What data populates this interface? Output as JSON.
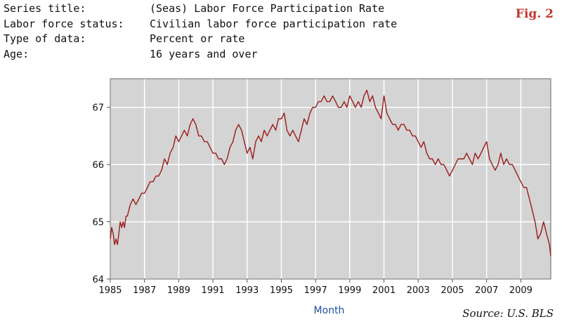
{
  "metadata": [
    {
      "label": "Series title:",
      "value": "(Seas) Labor Force Participation Rate"
    },
    {
      "label": "Labor force status:",
      "value": "Civilian labor force participation rate"
    },
    {
      "label": "Type of data:",
      "value": "Percent or rate"
    },
    {
      "label": "Age:",
      "value": "16 years and over"
    }
  ],
  "figure_label": "Fig. 2",
  "source": "Source: U.S. BLS",
  "colors": {
    "line": "#9b1b1b",
    "plot_bg": "#d4d4d4",
    "grid": "#ffffff",
    "fig_label": "#c0392b",
    "xlabel": "#1f4e9e"
  },
  "chart_data": {
    "type": "line",
    "title": "",
    "xlabel": "Month",
    "ylabel": "",
    "xlim": [
      1985,
      2010.75
    ],
    "ylim": [
      64,
      67.5
    ],
    "x_ticks": [
      1985,
      1987,
      1989,
      1991,
      1993,
      1995,
      1997,
      1999,
      2001,
      2003,
      2005,
      2007,
      2009
    ],
    "y_ticks": [
      64,
      65,
      66,
      67
    ],
    "grid": true,
    "legend": "none",
    "series": [
      {
        "name": "",
        "x": [
          1985.0,
          1985.08,
          1985.17,
          1985.25,
          1985.33,
          1985.42,
          1985.5,
          1985.58,
          1985.67,
          1985.75,
          1985.83,
          1985.92,
          1986.0,
          1986.17,
          1986.33,
          1986.5,
          1986.67,
          1986.83,
          1987.0,
          1987.17,
          1987.33,
          1987.5,
          1987.67,
          1987.83,
          1988.0,
          1988.17,
          1988.33,
          1988.5,
          1988.67,
          1988.83,
          1989.0,
          1989.17,
          1989.33,
          1989.5,
          1989.67,
          1989.83,
          1990.0,
          1990.17,
          1990.33,
          1990.5,
          1990.67,
          1990.83,
          1991.0,
          1991.17,
          1991.33,
          1991.5,
          1991.67,
          1991.83,
          1992.0,
          1992.17,
          1992.33,
          1992.5,
          1992.67,
          1992.83,
          1993.0,
          1993.17,
          1993.33,
          1993.5,
          1993.67,
          1993.83,
          1994.0,
          1994.17,
          1994.33,
          1994.5,
          1994.67,
          1994.83,
          1995.0,
          1995.17,
          1995.33,
          1995.5,
          1995.67,
          1995.83,
          1996.0,
          1996.17,
          1996.33,
          1996.5,
          1996.67,
          1996.83,
          1997.0,
          1997.17,
          1997.33,
          1997.5,
          1997.67,
          1997.83,
          1998.0,
          1998.17,
          1998.33,
          1998.5,
          1998.67,
          1998.83,
          1999.0,
          1999.17,
          1999.33,
          1999.5,
          1999.67,
          1999.83,
          2000.0,
          2000.17,
          2000.33,
          2000.5,
          2000.67,
          2000.83,
          2001.0,
          2001.17,
          2001.33,
          2001.5,
          2001.67,
          2001.83,
          2002.0,
          2002.17,
          2002.33,
          2002.5,
          2002.67,
          2002.83,
          2003.0,
          2003.17,
          2003.33,
          2003.5,
          2003.67,
          2003.83,
          2004.0,
          2004.17,
          2004.33,
          2004.5,
          2004.67,
          2004.83,
          2005.0,
          2005.17,
          2005.33,
          2005.5,
          2005.67,
          2005.83,
          2006.0,
          2006.17,
          2006.33,
          2006.5,
          2006.67,
          2006.83,
          2007.0,
          2007.17,
          2007.33,
          2007.5,
          2007.67,
          2007.83,
          2008.0,
          2008.17,
          2008.33,
          2008.5,
          2008.67,
          2008.83,
          2009.0,
          2009.17,
          2009.33,
          2009.5,
          2009.67,
          2009.83,
          2010.0,
          2010.17,
          2010.33,
          2010.5,
          2010.67,
          2010.75
        ],
        "values": [
          64.7,
          64.9,
          64.8,
          64.6,
          64.7,
          64.6,
          64.8,
          65.0,
          64.9,
          65.0,
          64.9,
          65.1,
          65.1,
          65.3,
          65.4,
          65.3,
          65.4,
          65.5,
          65.5,
          65.6,
          65.7,
          65.7,
          65.8,
          65.8,
          65.9,
          66.1,
          66.0,
          66.2,
          66.3,
          66.5,
          66.4,
          66.5,
          66.6,
          66.5,
          66.7,
          66.8,
          66.7,
          66.5,
          66.5,
          66.4,
          66.4,
          66.3,
          66.2,
          66.2,
          66.1,
          66.1,
          66.0,
          66.1,
          66.3,
          66.4,
          66.6,
          66.7,
          66.6,
          66.4,
          66.2,
          66.3,
          66.1,
          66.4,
          66.5,
          66.4,
          66.6,
          66.5,
          66.6,
          66.7,
          66.6,
          66.8,
          66.8,
          66.9,
          66.6,
          66.5,
          66.6,
          66.5,
          66.4,
          66.6,
          66.8,
          66.7,
          66.9,
          67.0,
          67.0,
          67.1,
          67.1,
          67.2,
          67.1,
          67.1,
          67.2,
          67.1,
          67.0,
          67.0,
          67.1,
          67.0,
          67.2,
          67.1,
          67.0,
          67.1,
          67.0,
          67.2,
          67.3,
          67.1,
          67.2,
          67.0,
          66.9,
          66.8,
          67.2,
          66.9,
          66.8,
          66.7,
          66.7,
          66.6,
          66.7,
          66.7,
          66.6,
          66.6,
          66.5,
          66.5,
          66.4,
          66.3,
          66.4,
          66.2,
          66.1,
          66.1,
          66.0,
          66.1,
          66.0,
          66.0,
          65.9,
          65.8,
          65.9,
          66.0,
          66.1,
          66.1,
          66.1,
          66.2,
          66.1,
          66.0,
          66.2,
          66.1,
          66.2,
          66.3,
          66.4,
          66.1,
          66.0,
          65.9,
          66.0,
          66.2,
          66.0,
          66.1,
          66.0,
          66.0,
          65.9,
          65.8,
          65.7,
          65.6,
          65.6,
          65.4,
          65.2,
          65.0,
          64.7,
          64.8,
          65.0,
          64.8,
          64.6,
          64.4
        ]
      }
    ]
  }
}
